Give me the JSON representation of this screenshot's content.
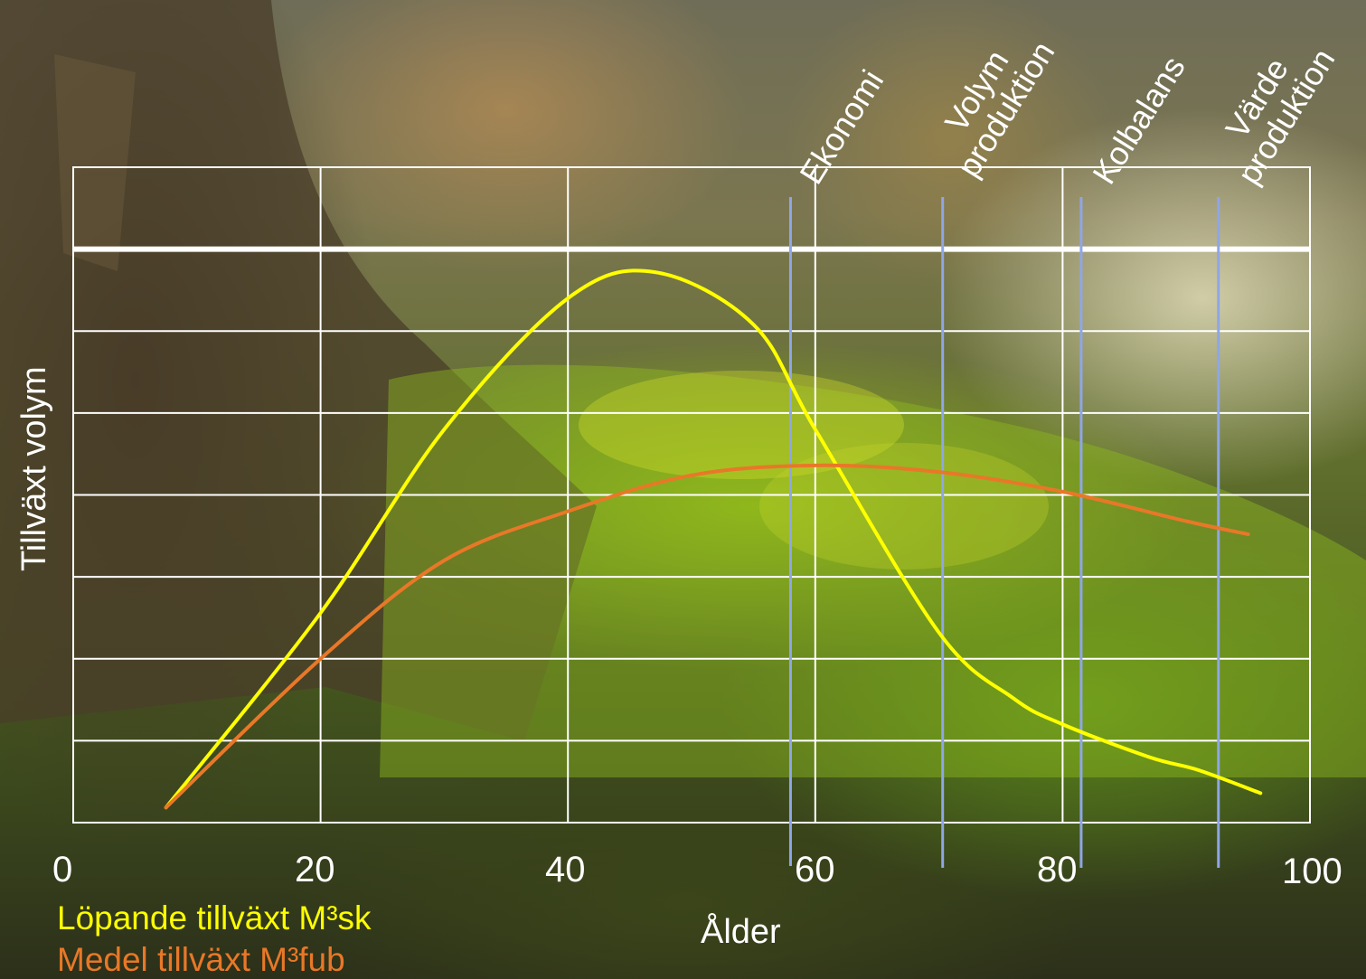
{
  "chart_data": {
    "type": "line",
    "xlabel": "Ålder",
    "ylabel": "Tillväxt volym",
    "xlim": [
      0,
      100
    ],
    "x_ticks": [
      "0",
      "20",
      "40",
      "60",
      "80",
      "100"
    ],
    "grid": true,
    "series": [
      {
        "name": "Löpande tillväxt M³sk",
        "color": "#ffff00",
        "x": [
          7.5,
          20,
          30,
          40,
          47,
          55,
          60,
          70,
          76,
          80,
          87,
          91,
          96
        ],
        "y": [
          2.3,
          32.0,
          60.0,
          80.0,
          84.0,
          76.0,
          60.0,
          29.0,
          19.0,
          15.0,
          10.0,
          8.0,
          4.5
        ]
      },
      {
        "name": "Medel tillväxt M³fub",
        "color": "#e87828",
        "x": [
          7.5,
          20,
          30,
          40,
          50,
          60,
          70,
          80,
          90,
          95
        ],
        "y": [
          2.3,
          25.0,
          40.0,
          47.5,
          53.0,
          54.5,
          53.5,
          50.5,
          46.0,
          44.0
        ]
      }
    ],
    "vertical_markers": [
      {
        "x": 58,
        "label": "Ekonomi"
      },
      {
        "x": 70.3,
        "label": "Volym produktion"
      },
      {
        "x": 81.5,
        "label": "Kolbalans"
      },
      {
        "x": 92.6,
        "label": "Värde produktion"
      }
    ]
  },
  "legend": {
    "series1": "Löpande tillväxt M³sk",
    "series2": "Medel tillväxt M³fub"
  },
  "colors": {
    "grid": "#ffffff",
    "marker": "#8fa6e6",
    "series1": "#ffff00",
    "series2": "#e87828"
  }
}
